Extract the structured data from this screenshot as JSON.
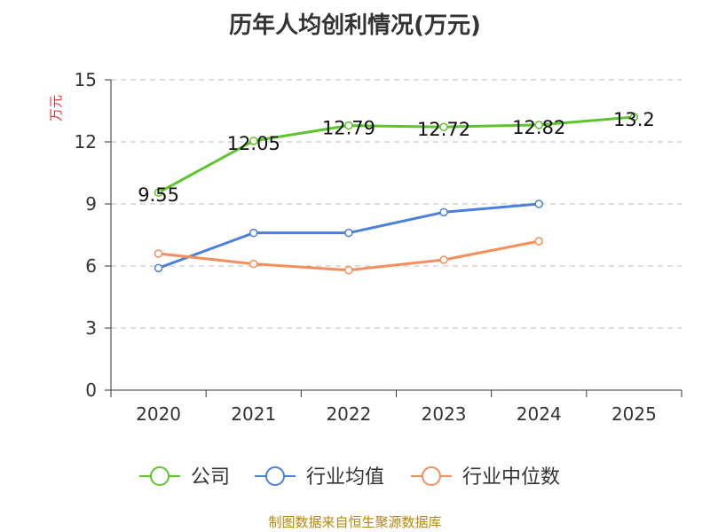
{
  "footer": "制图数据来自恒生聚源数据库",
  "chart_data": {
    "type": "line",
    "title": "历年人均创利情况(万元)",
    "xlabel": "",
    "ylabel": "万元",
    "categories": [
      "2020",
      "2021",
      "2022",
      "2023",
      "2024",
      "2025"
    ],
    "ylim": [
      0,
      15
    ],
    "yticks": [
      0,
      3,
      6,
      9,
      12,
      15
    ],
    "grid": true,
    "legend_position": "bottom",
    "series": [
      {
        "name": "公司",
        "color": "#5cc52a",
        "values": [
          9.55,
          12.05,
          12.79,
          12.72,
          12.82,
          13.2
        ],
        "labels": [
          "9.55",
          "12.05",
          "12.79",
          "12.72",
          "12.82",
          "13.2"
        ]
      },
      {
        "name": "行业均值",
        "color": "#4a7fdb",
        "values": [
          5.9,
          7.6,
          7.6,
          8.6,
          9.0,
          null
        ],
        "labels": []
      },
      {
        "name": "行业中位数",
        "color": "#f48f5b",
        "values": [
          6.6,
          6.1,
          5.8,
          6.3,
          7.2,
          null
        ],
        "labels": []
      }
    ]
  }
}
